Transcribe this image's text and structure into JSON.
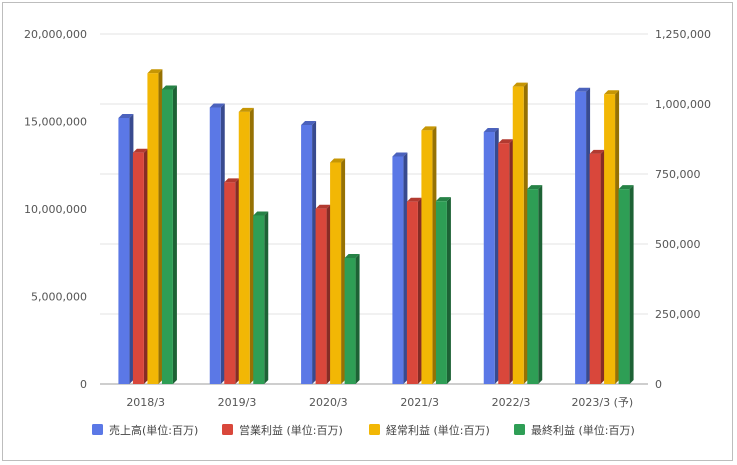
{
  "chart_data": {
    "type": "bar",
    "style": "3d-clustered-column",
    "categories": [
      "2018/3",
      "2019/3",
      "2020/3",
      "2021/3",
      "2022/3",
      "2023/3 (予)"
    ],
    "series": [
      {
        "name": "売上高(単位:百万)",
        "axis": "left",
        "color": "#5b78e6",
        "values": [
          15200000,
          15800000,
          14800000,
          13000000,
          14400000,
          16700000
        ]
      },
      {
        "name": "営業利益 (単位:百万)",
        "axis": "right",
        "color": "#d9473b",
        "values": [
          826000,
          720000,
          626000,
          651000,
          860000,
          822000
        ]
      },
      {
        "name": "経常利益 (単位:百万)",
        "axis": "right",
        "color": "#f2b705",
        "values": [
          1110000,
          972000,
          791000,
          906000,
          1062000,
          1035000
        ]
      },
      {
        "name": "最終利益 (単位:百万)",
        "axis": "right",
        "color": "#2e9e55",
        "values": [
          1052000,
          602000,
          450000,
          653000,
          696000,
          696000
        ]
      }
    ],
    "ylim_left": [
      0,
      20000000
    ],
    "ylim_right": [
      0,
      1250000
    ],
    "yticks_left": [
      "0",
      "5,000,000",
      "10,000,000",
      "15,000,000",
      "20,000,000"
    ],
    "yticks_right": [
      "0",
      "250,000",
      "500,000",
      "750,000",
      "1,000,000",
      "1,250,000"
    ],
    "grid": true,
    "legend_position": "bottom"
  }
}
